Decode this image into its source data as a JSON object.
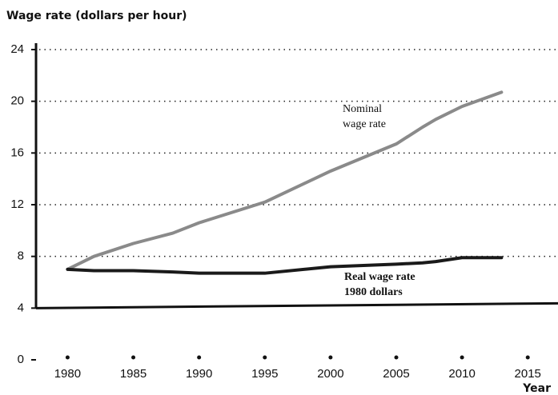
{
  "chart_data": {
    "type": "line",
    "title": "Wage rate (dollars per hour)",
    "x_label": "Year",
    "x": [
      1980,
      1982,
      1985,
      1988,
      1990,
      1995,
      2000,
      2005,
      2007,
      2008,
      2010,
      2013
    ],
    "series": [
      {
        "name": "Nominal wage rate",
        "color": "#8a8a8a",
        "values": [
          7.0,
          8.0,
          9.0,
          9.8,
          10.6,
          12.2,
          14.6,
          16.7,
          18.0,
          18.6,
          19.6,
          20.7
        ],
        "label_lines": [
          "Nominal",
          "wage rate"
        ]
      },
      {
        "name": "Real wage rate 1980 dollars",
        "color": "#1a1a1a",
        "values": [
          7.0,
          6.9,
          6.9,
          6.8,
          6.7,
          6.7,
          7.2,
          7.4,
          7.5,
          7.6,
          7.9,
          7.9
        ],
        "label_lines": [
          "Real wage rate",
          "1980 dollars"
        ]
      }
    ],
    "xlim": [
      1977.6,
      2017.3
    ],
    "xticks": [
      1980,
      1985,
      1990,
      1995,
      2000,
      2005,
      2010,
      2015
    ],
    "ylim": [
      0,
      24
    ],
    "yticks": [
      0,
      4,
      8,
      12,
      16,
      20,
      24
    ],
    "grid": true,
    "axis_break": true
  }
}
